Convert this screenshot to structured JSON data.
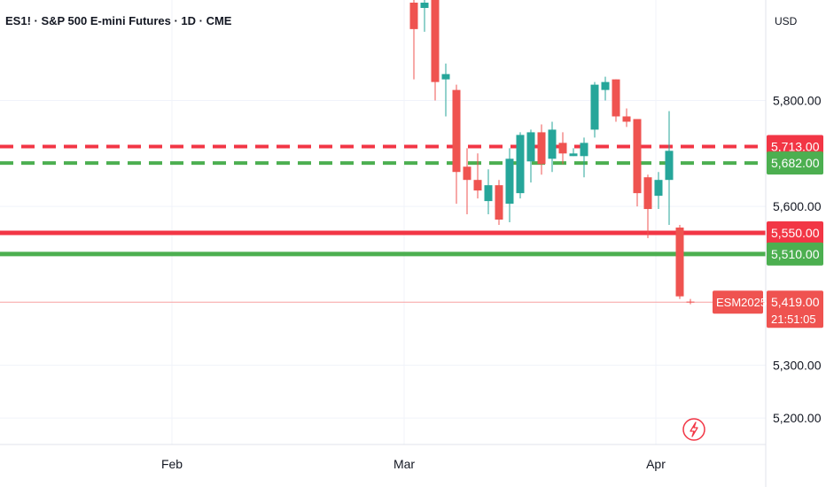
{
  "header": {
    "title": "ES1! · S&P 500 E-mini Futures · 1D · CME"
  },
  "price_axis": {
    "currency": "USD"
  },
  "colors": {
    "up": "#26a69a",
    "down": "#ef5350",
    "green_line": "#4caf50",
    "red_line": "#f23645",
    "grid": "#f0f3fa",
    "axis_border": "#e0e3eb"
  },
  "chart_data": {
    "type": "candlestick",
    "title": "ES1! · S&P 500 E-mini Futures · 1D · CME",
    "ylim": [
      5150,
      5990
    ],
    "y_ticks": [
      {
        "value": 5800,
        "label": "5,800.00"
      },
      {
        "value": 5600,
        "label": "5,600.00"
      },
      {
        "value": 5300,
        "label": "5,300.00"
      },
      {
        "value": 5200,
        "label": "5,200.00"
      }
    ],
    "x_labels": [
      "Feb",
      "Mar",
      "Apr"
    ],
    "candles": [
      {
        "o": 5985,
        "h": 5995,
        "l": 5840,
        "c": 5935
      },
      {
        "o": 5975,
        "h": 5995,
        "l": 5930,
        "c": 5985
      },
      {
        "o": 5990,
        "h": 5995,
        "l": 5800,
        "c": 5835
      },
      {
        "o": 5840,
        "h": 5870,
        "l": 5770,
        "c": 5850
      },
      {
        "o": 5820,
        "h": 5830,
        "l": 5605,
        "c": 5665
      },
      {
        "o": 5675,
        "h": 5710,
        "l": 5585,
        "c": 5650
      },
      {
        "o": 5650,
        "h": 5700,
        "l": 5615,
        "c": 5630
      },
      {
        "o": 5610,
        "h": 5670,
        "l": 5585,
        "c": 5640
      },
      {
        "o": 5640,
        "h": 5650,
        "l": 5565,
        "c": 5575
      },
      {
        "o": 5605,
        "h": 5710,
        "l": 5570,
        "c": 5690
      },
      {
        "o": 5625,
        "h": 5740,
        "l": 5615,
        "c": 5735
      },
      {
        "o": 5685,
        "h": 5745,
        "l": 5645,
        "c": 5740
      },
      {
        "o": 5740,
        "h": 5755,
        "l": 5660,
        "c": 5680
      },
      {
        "o": 5690,
        "h": 5760,
        "l": 5665,
        "c": 5745
      },
      {
        "o": 5720,
        "h": 5740,
        "l": 5680,
        "c": 5700
      },
      {
        "o": 5695,
        "h": 5710,
        "l": 5695,
        "c": 5700
      },
      {
        "o": 5695,
        "h": 5730,
        "l": 5655,
        "c": 5720
      },
      {
        "o": 5745,
        "h": 5835,
        "l": 5730,
        "c": 5830
      },
      {
        "o": 5820,
        "h": 5845,
        "l": 5800,
        "c": 5835
      },
      {
        "o": 5840,
        "h": 5840,
        "l": 5760,
        "c": 5770
      },
      {
        "o": 5770,
        "h": 5785,
        "l": 5750,
        "c": 5760
      },
      {
        "o": 5765,
        "h": 5765,
        "l": 5600,
        "c": 5625
      },
      {
        "o": 5655,
        "h": 5660,
        "l": 5540,
        "c": 5595
      },
      {
        "o": 5620,
        "h": 5665,
        "l": 5595,
        "c": 5650
      },
      {
        "o": 5650,
        "h": 5780,
        "l": 5565,
        "c": 5705
      },
      {
        "o": 5560,
        "h": 5565,
        "l": 5425,
        "c": 5430
      },
      {
        "o": 5420,
        "h": 5425,
        "l": 5415,
        "c": 5419
      }
    ],
    "horizontal_lines": [
      {
        "price": 5713,
        "label": "5,713.00",
        "style": "dashed",
        "color": "#f23645"
      },
      {
        "price": 5682,
        "label": "5,682.00",
        "style": "dashed",
        "color": "#4caf50"
      },
      {
        "price": 5550,
        "label": "5,550.00",
        "style": "solid",
        "color": "#f23645"
      },
      {
        "price": 5510,
        "label": "5,510.00",
        "style": "solid",
        "color": "#4caf50"
      }
    ],
    "last_price": {
      "value": 5419,
      "label": "5,419.00",
      "countdown": "21:51:05",
      "symbol": "ESM2025"
    }
  }
}
